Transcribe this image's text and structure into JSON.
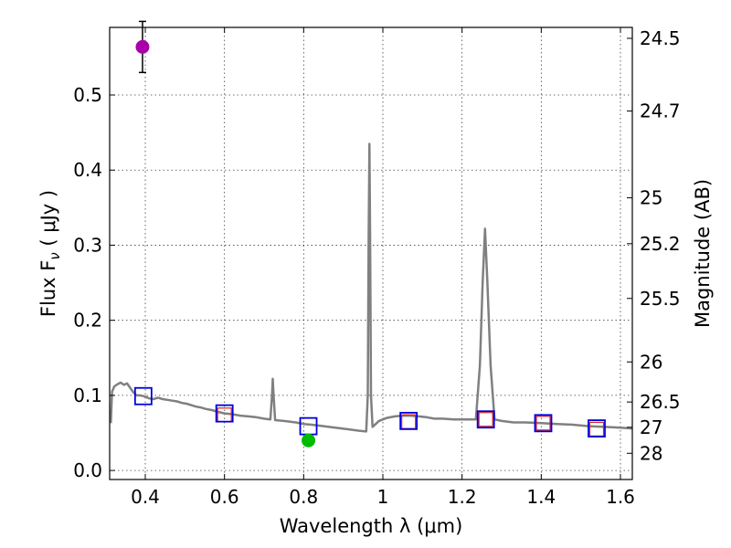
{
  "chart_data": {
    "type": "scatter",
    "xlabel": "Wavelength  λ (μm)",
    "ylabel": "Flux  F",
    "ylabel_subscript": "ν",
    "ylabel_unit": "  ( μJy )",
    "ylabel_right": "Magnitude (AB)",
    "xlim": [
      0.31,
      1.63
    ],
    "ylim": [
      -0.012,
      0.59
    ],
    "x_ticks": [
      {
        "value": 0.4,
        "label": "0.4"
      },
      {
        "value": 0.6,
        "label": "0.6"
      },
      {
        "value": 0.8,
        "label": "0.8"
      },
      {
        "value": 1.0,
        "label": "1"
      },
      {
        "value": 1.2,
        "label": "1.2"
      },
      {
        "value": 1.4,
        "label": "1.4"
      },
      {
        "value": 1.6,
        "label": "1.6"
      }
    ],
    "y_ticks": [
      {
        "value": 0.0,
        "label": "0.0"
      },
      {
        "value": 0.1,
        "label": "0.1"
      },
      {
        "value": 0.2,
        "label": "0.2"
      },
      {
        "value": 0.3,
        "label": "0.3"
      },
      {
        "value": 0.4,
        "label": "0.4"
      },
      {
        "value": 0.5,
        "label": "0.5"
      }
    ],
    "mag_ticks": [
      {
        "value": 24.5,
        "label": "24.5"
      },
      {
        "value": 24.7,
        "label": "24.7"
      },
      {
        "value": 25.0,
        "label": "25"
      },
      {
        "value": 25.2,
        "label": "25.2"
      },
      {
        "value": 25.5,
        "label": "25.5"
      },
      {
        "value": 26.0,
        "label": "26"
      },
      {
        "value": 26.5,
        "label": "26.5"
      },
      {
        "value": 27.0,
        "label": "27"
      },
      {
        "value": 28.0,
        "label": "28"
      }
    ],
    "grid": true,
    "colors": {
      "spectrum": "#808080",
      "model_box": "#0000dd",
      "observed_box": "#dd2222",
      "purple_point": "#aa00aa",
      "green_point": "#00bb00",
      "errorbar": "#000000"
    },
    "spectrum": [
      [
        0.313,
        0.063
      ],
      [
        0.316,
        0.105
      ],
      [
        0.322,
        0.112
      ],
      [
        0.33,
        0.115
      ],
      [
        0.338,
        0.117
      ],
      [
        0.346,
        0.114
      ],
      [
        0.354,
        0.116
      ],
      [
        0.362,
        0.11
      ],
      [
        0.37,
        0.104
      ],
      [
        0.378,
        0.1
      ],
      [
        0.388,
        0.1
      ],
      [
        0.395,
        0.099
      ],
      [
        0.402,
        0.098
      ],
      [
        0.41,
        0.096
      ],
      [
        0.42,
        0.095
      ],
      [
        0.432,
        0.097
      ],
      [
        0.444,
        0.095
      ],
      [
        0.456,
        0.094
      ],
      [
        0.468,
        0.093
      ],
      [
        0.48,
        0.092
      ],
      [
        0.492,
        0.09
      ],
      [
        0.504,
        0.089
      ],
      [
        0.516,
        0.087
      ],
      [
        0.528,
        0.085
      ],
      [
        0.54,
        0.084
      ],
      [
        0.552,
        0.082
      ],
      [
        0.562,
        0.081
      ],
      [
        0.572,
        0.08
      ],
      [
        0.584,
        0.078
      ],
      [
        0.6,
        0.076
      ],
      [
        0.62,
        0.075
      ],
      [
        0.64,
        0.073
      ],
      [
        0.66,
        0.072
      ],
      [
        0.68,
        0.071
      ],
      [
        0.7,
        0.069
      ],
      [
        0.716,
        0.068
      ],
      [
        0.72,
        0.1
      ],
      [
        0.722,
        0.122
      ],
      [
        0.724,
        0.1
      ],
      [
        0.728,
        0.067
      ],
      [
        0.75,
        0.066
      ],
      [
        0.78,
        0.064
      ],
      [
        0.8,
        0.062
      ],
      [
        0.82,
        0.061
      ],
      [
        0.85,
        0.059
      ],
      [
        0.88,
        0.057
      ],
      [
        0.91,
        0.055
      ],
      [
        0.94,
        0.053
      ],
      [
        0.958,
        0.052
      ],
      [
        0.962,
        0.1
      ],
      [
        0.964,
        0.3
      ],
      [
        0.966,
        0.435
      ],
      [
        0.968,
        0.3
      ],
      [
        0.97,
        0.1
      ],
      [
        0.974,
        0.058
      ],
      [
        0.99,
        0.066
      ],
      [
        1.01,
        0.07
      ],
      [
        1.03,
        0.072
      ],
      [
        1.05,
        0.073
      ],
      [
        1.07,
        0.073
      ],
      [
        1.09,
        0.072
      ],
      [
        1.11,
        0.071
      ],
      [
        1.13,
        0.069
      ],
      [
        1.15,
        0.069
      ],
      [
        1.18,
        0.068
      ],
      [
        1.21,
        0.068
      ],
      [
        1.235,
        0.068
      ],
      [
        1.245,
        0.14
      ],
      [
        1.252,
        0.25
      ],
      [
        1.258,
        0.322
      ],
      [
        1.264,
        0.25
      ],
      [
        1.272,
        0.14
      ],
      [
        1.282,
        0.068
      ],
      [
        1.3,
        0.066
      ],
      [
        1.33,
        0.064
      ],
      [
        1.36,
        0.064
      ],
      [
        1.4,
        0.063
      ],
      [
        1.44,
        0.062
      ],
      [
        1.48,
        0.061
      ],
      [
        1.52,
        0.059
      ],
      [
        1.56,
        0.058
      ],
      [
        1.6,
        0.057
      ],
      [
        1.63,
        0.056
      ]
    ],
    "model_points": [
      {
        "x": 0.395,
        "y": 0.099
      },
      {
        "x": 0.6,
        "y": 0.076
      },
      {
        "x": 0.812,
        "y": 0.059
      },
      {
        "x": 1.065,
        "y": 0.066
      },
      {
        "x": 1.26,
        "y": 0.068
      },
      {
        "x": 1.405,
        "y": 0.063
      },
      {
        "x": 1.54,
        "y": 0.056
      }
    ],
    "observed_points": [
      {
        "x": 0.6,
        "y": 0.074
      },
      {
        "x": 1.065,
        "y": 0.065
      },
      {
        "x": 1.26,
        "y": 0.068
      },
      {
        "x": 1.405,
        "y": 0.063
      },
      {
        "x": 1.54,
        "y": 0.055
      }
    ],
    "detections": [
      {
        "x": 0.393,
        "y": 0.564,
        "yerr": 0.034,
        "color_key": "purple_point"
      },
      {
        "x": 0.812,
        "y": 0.04,
        "yerr": 0.005,
        "color_key": "green_point"
      }
    ]
  }
}
